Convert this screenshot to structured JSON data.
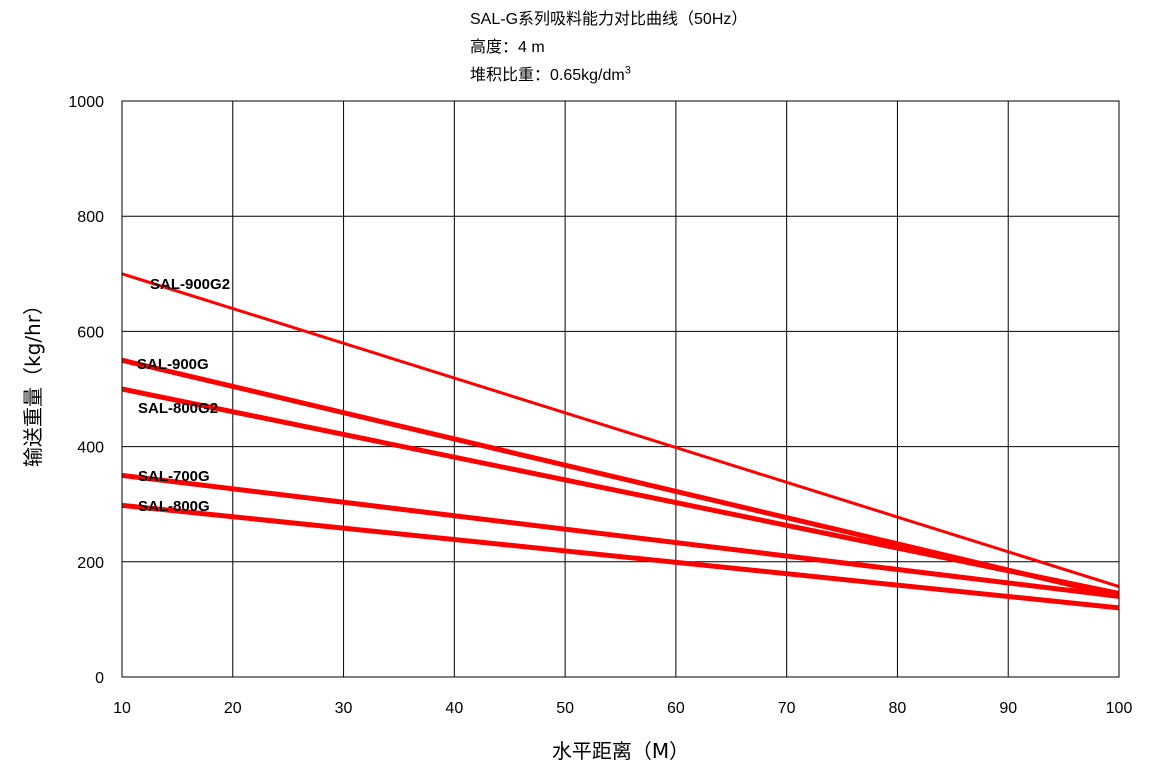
{
  "header": {
    "title": "SAL-G系列吸料能力对比曲线（50Hz）",
    "height_label": "高度：",
    "height_value": "4 m",
    "density_label": "堆积比重：",
    "density_value": "0.65kg/dm",
    "density_superscript": "3"
  },
  "chart_data": {
    "type": "line",
    "xlabel": "水平距离（M）",
    "ylabel": "输送重量（kg/hr）",
    "xlim": [
      10,
      100
    ],
    "ylim": [
      0,
      1000
    ],
    "x_ticks": [
      10,
      20,
      30,
      40,
      50,
      60,
      70,
      80,
      90,
      100
    ],
    "y_ticks": [
      0,
      200,
      400,
      600,
      800,
      1000
    ],
    "grid": true,
    "line_color": "#ff0000",
    "series": [
      {
        "name": "SAL-900G2",
        "x": [
          10,
          100
        ],
        "y": [
          700,
          157
        ],
        "weight": "thin"
      },
      {
        "name": "SAL-900G",
        "x": [
          10,
          100
        ],
        "y": [
          550,
          140
        ],
        "weight": "thick"
      },
      {
        "name": "SAL-800G2",
        "x": [
          10,
          100
        ],
        "y": [
          500,
          145
        ],
        "weight": "thick"
      },
      {
        "name": "SAL-700G",
        "x": [
          10,
          100
        ],
        "y": [
          350,
          140
        ],
        "weight": "thick"
      },
      {
        "name": "SAL-800G",
        "x": [
          10,
          100
        ],
        "y": [
          298,
          120
        ],
        "weight": "thick"
      }
    ]
  }
}
